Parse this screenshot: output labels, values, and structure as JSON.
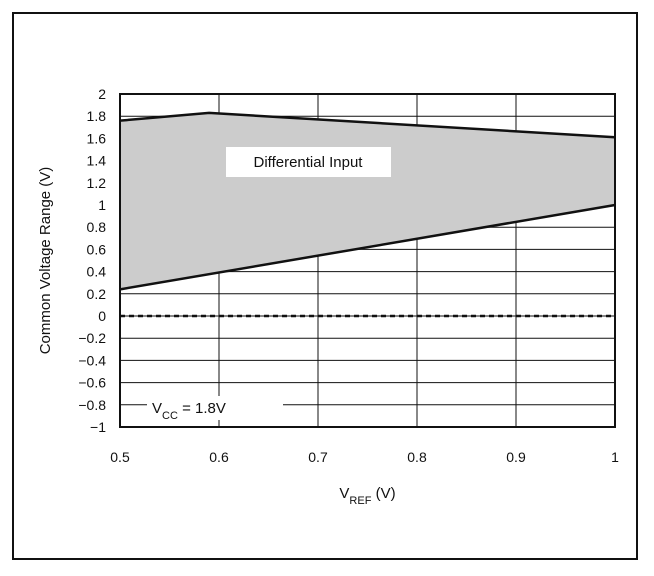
{
  "chart_data": {
    "type": "area",
    "xlabel": {
      "main": "V",
      "sub": "REF",
      "unit": " (V)"
    },
    "ylabel": "Common Voltage Range (V)",
    "xlim": [
      0.5,
      1.0
    ],
    "ylim": [
      -1,
      2
    ],
    "x_ticks": [
      0.5,
      0.6,
      0.7,
      0.8,
      0.9,
      1.0
    ],
    "x_tick_labels": [
      "0.5",
      "0.6",
      "0.7",
      "0.8",
      "0.9",
      "1"
    ],
    "y_ticks": [
      2,
      1.8,
      1.6,
      1.4,
      1.2,
      1,
      0.8,
      0.6,
      0.4,
      0.2,
      0,
      -0.2,
      -0.4,
      -0.6,
      -0.8,
      -1
    ],
    "y_tick_labels": [
      "2",
      "1.8",
      "1.6",
      "1.4",
      "1.2",
      "1",
      "0.8",
      "0.6",
      "0.4",
      "0.2",
      "0",
      "−0.2",
      "−0.4",
      "−0.6",
      "−0.8",
      "−1"
    ],
    "grid": true,
    "fill_color": "#cccccc",
    "line_color": "#111111",
    "upper_boundary": {
      "x": [
        0.5,
        0.59,
        1.0
      ],
      "y": [
        1.76,
        1.83,
        1.61
      ]
    },
    "lower_boundary": {
      "x": [
        0.5,
        1.0
      ],
      "y": [
        0.24,
        1.0
      ]
    },
    "zero_line": {
      "y": 0,
      "style": "dashed"
    },
    "region_label": "Differential Input",
    "condition": {
      "main": "V",
      "sub": "CC",
      "rest": " = 1.8V"
    }
  }
}
